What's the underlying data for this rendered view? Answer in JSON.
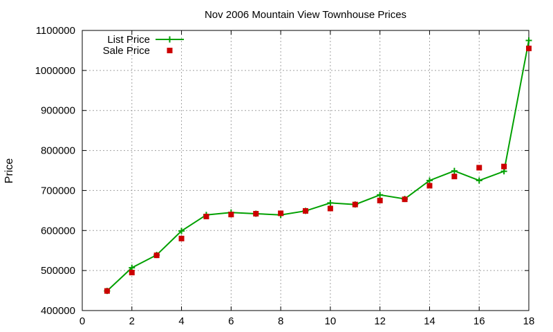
{
  "chart_data": {
    "type": "line",
    "title": "Nov 2006 Mountain View Townhouse Prices",
    "xlabel": "",
    "ylabel": "Price",
    "xlim": [
      0,
      18
    ],
    "ylim": [
      400000,
      1100000
    ],
    "xticks": [
      0,
      2,
      4,
      6,
      8,
      10,
      12,
      14,
      16,
      18
    ],
    "yticks": [
      400000,
      500000,
      600000,
      700000,
      800000,
      900000,
      1000000,
      1100000
    ],
    "xtick_labels": [
      "0",
      "2",
      "4",
      "6",
      "8",
      "10",
      "12",
      "14",
      "16",
      "18"
    ],
    "ytick_labels": [
      "400000",
      "500000",
      "600000",
      "700000",
      "800000",
      "900000",
      "1000000",
      "1100000"
    ],
    "grid": true,
    "legend_position": "top-left",
    "x": [
      1,
      2,
      3,
      4,
      5,
      6,
      7,
      8,
      9,
      10,
      11,
      12,
      13,
      14,
      15,
      16,
      17,
      18
    ],
    "series": [
      {
        "name": "List Price",
        "style": "linespoints",
        "marker": "plus",
        "color": "#00a000",
        "values": [
          449000,
          507000,
          539000,
          599000,
          639000,
          645000,
          642000,
          639000,
          649000,
          669000,
          665000,
          689000,
          679000,
          725000,
          749000,
          725000,
          748000,
          1075000
        ]
      },
      {
        "name": "Sale Price",
        "style": "points",
        "marker": "square",
        "color": "#cc0000",
        "values": [
          449000,
          495000,
          538000,
          580000,
          635000,
          640000,
          642000,
          643000,
          649000,
          655000,
          665000,
          675000,
          678000,
          712000,
          735000,
          757000,
          760000,
          1055000
        ]
      }
    ]
  }
}
